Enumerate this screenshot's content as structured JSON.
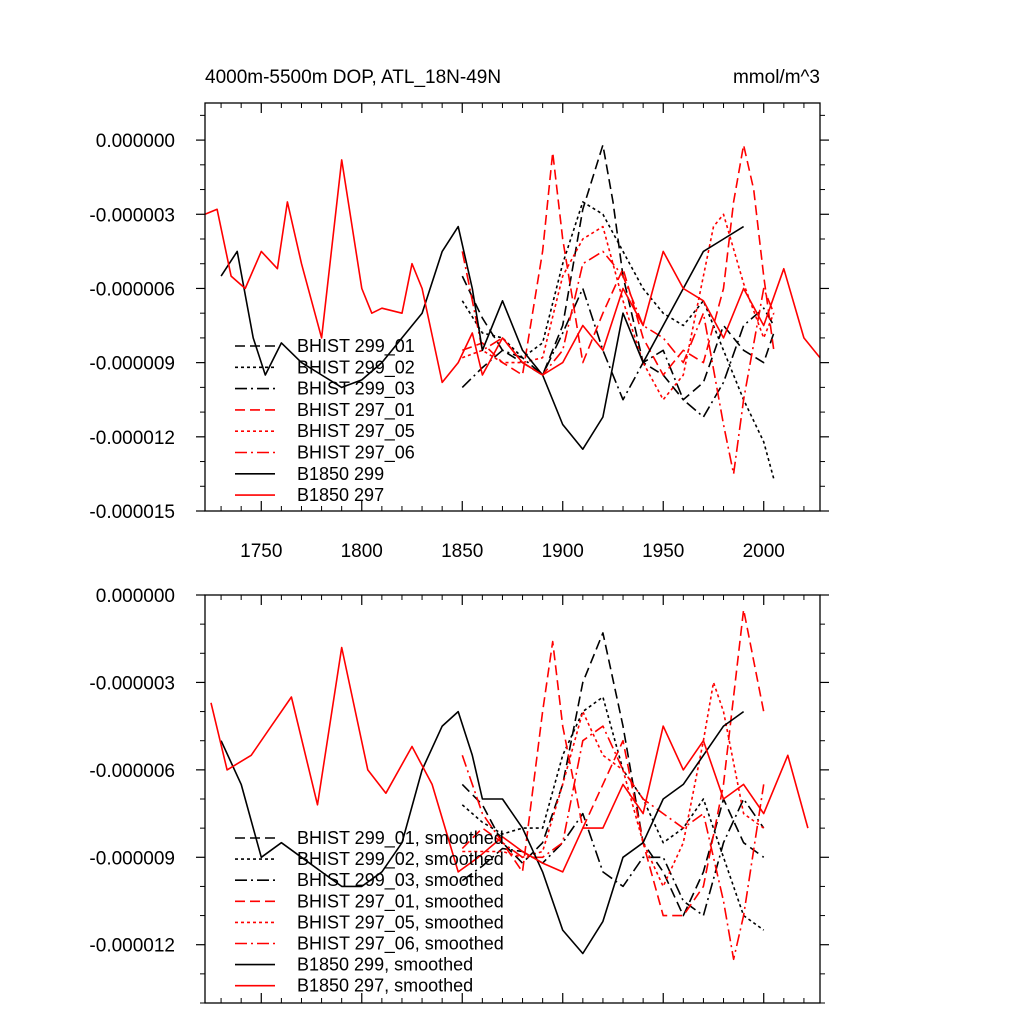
{
  "colors": {
    "black": "#000000",
    "red": "#ff0000"
  },
  "chart_data": [
    {
      "type": "line",
      "title": "4000m-5500m DOP, ATL_18N-49N",
      "units": "mmol/m^3",
      "xlim": [
        1722,
        2028
      ],
      "ylim": [
        -1.5e-05,
        1.5e-06
      ],
      "xticks": [
        1750,
        1800,
        1850,
        1900,
        1950,
        2000
      ],
      "xticklabels": [
        "1750",
        "1800",
        "1850",
        "1900",
        "1950",
        "2000"
      ],
      "yticks": [
        0.0,
        -3e-06,
        -6e-06,
        -9e-06,
        -1.2e-05,
        -1.5e-05
      ],
      "yticklabels": [
        "0.000000",
        "-0.000003",
        "-0.000006",
        "-0.000009",
        "-0.000012",
        "-0.000015"
      ],
      "legend": [
        "BHIST 299_01",
        "BHIST 299_02",
        "BHIST 299_03",
        "BHIST 297_01",
        "BHIST 297_05",
        "BHIST 297_06",
        "B1850 299",
        "B1850 297"
      ],
      "series": [
        {
          "name": "BHIST 299_01",
          "color": "#000000",
          "dash": "10 5",
          "x": [
            1850,
            1860,
            1870,
            1880,
            1890,
            1900,
            1910,
            1920,
            1925,
            1930,
            1940,
            1950,
            1960,
            1970,
            1980,
            1990,
            2000,
            2005
          ],
          "y": [
            -5.5e-06,
            -7.2e-06,
            -8.5e-06,
            -9e-06,
            -9.5e-06,
            -7.5e-06,
            -2.8e-06,
            -2e-07,
            -2.5e-06,
            -5.5e-06,
            -9e-06,
            -9.5e-06,
            -1.05e-05,
            -9.8e-06,
            -7.5e-06,
            -8.5e-06,
            -9e-06,
            -7.8e-06
          ]
        },
        {
          "name": "BHIST 299_02",
          "color": "#000000",
          "dash": "3 3",
          "x": [
            1850,
            1860,
            1870,
            1880,
            1890,
            1900,
            1910,
            1920,
            1930,
            1940,
            1950,
            1960,
            1970,
            1980,
            1990,
            2000,
            2005
          ],
          "y": [
            -6.5e-06,
            -7.8e-06,
            -8e-06,
            -8.8e-06,
            -8.2e-06,
            -5e-06,
            -2.5e-06,
            -3e-06,
            -4.5e-06,
            -6e-06,
            -7e-06,
            -7.5e-06,
            -6.5e-06,
            -8.5e-06,
            -1.05e-05,
            -1.22e-05,
            -1.37e-05
          ]
        },
        {
          "name": "BHIST 299_03",
          "color": "#000000",
          "dash": "12 4 2 4",
          "x": [
            1850,
            1860,
            1870,
            1880,
            1890,
            1900,
            1910,
            1920,
            1930,
            1940,
            1950,
            1960,
            1970,
            1980,
            1990,
            2000,
            2005
          ],
          "y": [
            -1e-05,
            -9.2e-06,
            -8.5e-06,
            -8.8e-06,
            -9.5e-06,
            -7.8e-06,
            -6e-06,
            -8.5e-06,
            -1.05e-05,
            -9e-06,
            -8.5e-06,
            -1.05e-05,
            -1.12e-05,
            -9.8e-06,
            -7.5e-06,
            -6.8e-06,
            -7.5e-06
          ]
        },
        {
          "name": "BHIST 297_01",
          "color": "#ff0000",
          "dash": "10 5",
          "x": [
            1850,
            1860,
            1870,
            1880,
            1890,
            1895,
            1900,
            1905,
            1910,
            1920,
            1930,
            1940,
            1950,
            1960,
            1970,
            1980,
            1985,
            1990,
            1995,
            2000,
            2005
          ],
          "y": [
            -8.5e-06,
            -8.2e-06,
            -9e-06,
            -9.5e-06,
            -4.5e-06,
            -5e-07,
            -4e-06,
            -6.5e-06,
            -9e-06,
            -7e-06,
            -5.2e-06,
            -8e-06,
            -9.5e-06,
            -8.5e-06,
            -9e-06,
            -6e-06,
            -2.5e-06,
            -2e-07,
            -2e-06,
            -5.5e-06,
            -8.5e-06
          ]
        },
        {
          "name": "BHIST 297_05",
          "color": "#ff0000",
          "dash": "3 3",
          "x": [
            1850,
            1860,
            1870,
            1880,
            1890,
            1900,
            1910,
            1920,
            1930,
            1940,
            1950,
            1960,
            1970,
            1975,
            1980,
            1990,
            2000,
            2005
          ],
          "y": [
            -8.8e-06,
            -8.5e-06,
            -9e-06,
            -9e-06,
            -8.8e-06,
            -5.5e-06,
            -4e-06,
            -3.5e-06,
            -6.5e-06,
            -9e-06,
            -1.05e-05,
            -9.5e-06,
            -5.5e-06,
            -3.5e-06,
            -3e-06,
            -5.8e-06,
            -8e-06,
            -7e-06
          ]
        },
        {
          "name": "BHIST 297_06",
          "color": "#ff0000",
          "dash": "12 4 2 4",
          "x": [
            1850,
            1860,
            1870,
            1880,
            1890,
            1900,
            1910,
            1920,
            1930,
            1940,
            1950,
            1960,
            1970,
            1980,
            1985,
            1990,
            2000,
            2005
          ],
          "y": [
            -4.5e-06,
            -8.5e-06,
            -8e-06,
            -9e-06,
            -9.5e-06,
            -8.5e-06,
            -5e-06,
            -4.5e-06,
            -5.5e-06,
            -7.5e-06,
            -8e-06,
            -9e-06,
            -7e-06,
            -1.15e-05,
            -1.35e-05,
            -1.05e-05,
            -6e-06,
            -7e-06
          ]
        },
        {
          "name": "B1850 299",
          "color": "#000000",
          "dash": "",
          "x": [
            1730,
            1738,
            1746,
            1752,
            1760,
            1770,
            1780,
            1790,
            1800,
            1810,
            1820,
            1830,
            1840,
            1848,
            1855,
            1860,
            1870,
            1880,
            1890,
            1900,
            1910,
            1920,
            1930,
            1940,
            1950,
            1960,
            1970,
            1980,
            1990
          ],
          "y": [
            -5.5e-06,
            -4.5e-06,
            -8e-06,
            -9.5e-06,
            -8.2e-06,
            -9e-06,
            -9.5e-06,
            -1e-05,
            -9.7e-06,
            -9e-06,
            -8e-06,
            -7e-06,
            -4.5e-06,
            -3.5e-06,
            -6e-06,
            -8.5e-06,
            -6.5e-06,
            -8.5e-06,
            -9.5e-06,
            -1.15e-05,
            -1.25e-05,
            -1.12e-05,
            -7e-06,
            -9e-06,
            -7.5e-06,
            -6e-06,
            -4.5e-06,
            -4e-06,
            -3.5e-06
          ]
        },
        {
          "name": "B1850 297",
          "color": "#ff0000",
          "dash": "",
          "x": [
            1722,
            1728,
            1735,
            1742,
            1750,
            1758,
            1763,
            1770,
            1780,
            1790,
            1800,
            1805,
            1810,
            1820,
            1825,
            1830,
            1840,
            1848,
            1855,
            1860,
            1870,
            1880,
            1890,
            1900,
            1910,
            1920,
            1930,
            1940,
            1950,
            1960,
            1970,
            1980,
            1990,
            2000,
            2010,
            2020,
            2028
          ],
          "y": [
            -3e-06,
            -2.8e-06,
            -5.5e-06,
            -6e-06,
            -4.5e-06,
            -5.2e-06,
            -2.5e-06,
            -5e-06,
            -8e-06,
            -8e-07,
            -6e-06,
            -7e-06,
            -6.8e-06,
            -7e-06,
            -5e-06,
            -6e-06,
            -9.8e-06,
            -9e-06,
            -7.8e-06,
            -9.5e-06,
            -8e-06,
            -9e-06,
            -9.5e-06,
            -9e-06,
            -7.5e-06,
            -8.5e-06,
            -6e-06,
            -7.5e-06,
            -4.5e-06,
            -6e-06,
            -6.5e-06,
            -8e-06,
            -6e-06,
            -7.5e-06,
            -5.2e-06,
            -8e-06,
            -8.8e-06
          ]
        }
      ]
    },
    {
      "type": "line",
      "title": "",
      "units": "",
      "xlim": [
        1722,
        2028
      ],
      "ylim": [
        -1.4e-05,
        0.0
      ],
      "xticks": [
        1750,
        1800,
        1850,
        1900,
        1950,
        2000
      ],
      "xticklabels": [],
      "yticks": [
        0.0,
        -3e-06,
        -6e-06,
        -9e-06,
        -1.2e-05
      ],
      "yticklabels": [
        "0.000000",
        "-0.000003",
        "-0.000006",
        "-0.000009",
        "-0.000012"
      ],
      "legend": [
        "BHIST 299_01, smoothed",
        "BHIST 299_02, smoothed",
        "BHIST 299_03, smoothed",
        "BHIST 297_01, smoothed",
        "BHIST 297_05, smoothed",
        "BHIST 297_06, smoothed",
        "B1850 299, smoothed",
        "B1850 297, smoothed"
      ],
      "series": [
        {
          "name": "BHIST 299_01, smoothed",
          "color": "#000000",
          "dash": "10 5",
          "x": [
            1850,
            1860,
            1870,
            1880,
            1890,
            1900,
            1910,
            1920,
            1930,
            1940,
            1950,
            1960,
            1970,
            1980,
            1990,
            2000
          ],
          "y": [
            -6.5e-06,
            -7.2e-06,
            -8.5e-06,
            -9.2e-06,
            -8.5e-06,
            -6.5e-06,
            -3e-06,
            -1.3e-06,
            -4.5e-06,
            -8.5e-06,
            -9.5e-06,
            -1.1e-05,
            -9.5e-06,
            -7e-06,
            -8.5e-06,
            -9e-06
          ]
        },
        {
          "name": "BHIST 299_02, smoothed",
          "color": "#000000",
          "dash": "3 3",
          "x": [
            1850,
            1860,
            1870,
            1880,
            1890,
            1900,
            1910,
            1920,
            1930,
            1940,
            1950,
            1960,
            1970,
            1980,
            1990,
            2000
          ],
          "y": [
            -7.2e-06,
            -7.8e-06,
            -8.2e-06,
            -8e-06,
            -8e-06,
            -5.5e-06,
            -4e-06,
            -3.5e-06,
            -6e-06,
            -7e-06,
            -8.5e-06,
            -8e-06,
            -7e-06,
            -9e-06,
            -1.1e-05,
            -1.15e-05
          ]
        },
        {
          "name": "BHIST 299_03, smoothed",
          "color": "#000000",
          "dash": "12 4 2 4",
          "x": [
            1850,
            1860,
            1870,
            1880,
            1890,
            1900,
            1910,
            1920,
            1930,
            1940,
            1950,
            1960,
            1970,
            1980,
            1990,
            2000
          ],
          "y": [
            -9.8e-06,
            -9.3e-06,
            -8.7e-06,
            -8.8e-06,
            -9.2e-06,
            -8.5e-06,
            -7.5e-06,
            -9.5e-06,
            -1e-05,
            -9e-06,
            -9e-06,
            -1.05e-05,
            -1.1e-05,
            -8.5e-06,
            -7e-06,
            -8e-06
          ]
        },
        {
          "name": "BHIST 297_01, smoothed",
          "color": "#ff0000",
          "dash": "10 5",
          "x": [
            1850,
            1860,
            1870,
            1880,
            1890,
            1895,
            1900,
            1910,
            1920,
            1930,
            1940,
            1950,
            1960,
            1970,
            1980,
            1990,
            2000
          ],
          "y": [
            -8.7e-06,
            -8e-06,
            -8.5e-06,
            -9.5e-06,
            -4e-06,
            -1.6e-06,
            -4.5e-06,
            -8e-06,
            -6.5e-06,
            -5e-06,
            -8.5e-06,
            -1.1e-05,
            -1.1e-05,
            -1e-05,
            -6.5e-06,
            -5e-07,
            -4e-06
          ]
        },
        {
          "name": "BHIST 297_05, smoothed",
          "color": "#ff0000",
          "dash": "3 3",
          "x": [
            1850,
            1860,
            1870,
            1880,
            1890,
            1900,
            1910,
            1920,
            1930,
            1940,
            1950,
            1960,
            1970,
            1975,
            1980,
            1990,
            2000
          ],
          "y": [
            -8.8e-06,
            -8.8e-06,
            -8.8e-06,
            -9e-06,
            -8.8e-06,
            -6.5e-06,
            -4e-06,
            -5.5e-06,
            -6e-06,
            -8.5e-06,
            -1e-05,
            -8.5e-06,
            -5e-06,
            -3e-06,
            -4e-06,
            -7.5e-06,
            -8e-06
          ]
        },
        {
          "name": "BHIST 297_06, smoothed",
          "color": "#ff0000",
          "dash": "12 4 2 4",
          "x": [
            1850,
            1860,
            1870,
            1880,
            1890,
            1900,
            1910,
            1920,
            1930,
            1940,
            1950,
            1960,
            1970,
            1980,
            1985,
            1990,
            2000
          ],
          "y": [
            -5.5e-06,
            -7.5e-06,
            -8.5e-06,
            -9e-06,
            -9e-06,
            -8.5e-06,
            -5e-06,
            -4.5e-06,
            -6e-06,
            -7e-06,
            -7.5e-06,
            -8e-06,
            -7.5e-06,
            -1.05e-05,
            -1.25e-05,
            -1.1e-05,
            -6.5e-06
          ]
        },
        {
          "name": "B1850 299, smoothed",
          "color": "#000000",
          "dash": "",
          "x": [
            1730,
            1740,
            1750,
            1760,
            1770,
            1780,
            1790,
            1800,
            1810,
            1820,
            1830,
            1840,
            1848,
            1855,
            1860,
            1870,
            1880,
            1890,
            1900,
            1910,
            1920,
            1930,
            1940,
            1950,
            1960,
            1970,
            1980,
            1990
          ],
          "y": [
            -5e-06,
            -6.5e-06,
            -9e-06,
            -8.5e-06,
            -9e-06,
            -9.5e-06,
            -1e-05,
            -1e-05,
            -9.5e-06,
            -8.5e-06,
            -6e-06,
            -4.5e-06,
            -4e-06,
            -5.5e-06,
            -7e-06,
            -7e-06,
            -8e-06,
            -9.5e-06,
            -1.15e-05,
            -1.23e-05,
            -1.12e-05,
            -9e-06,
            -8.5e-06,
            -7e-06,
            -6.5e-06,
            -5.5e-06,
            -4.5e-06,
            -4e-06
          ]
        },
        {
          "name": "B1850 297, smoothed",
          "color": "#ff0000",
          "dash": "",
          "x": [
            1725,
            1733,
            1745,
            1755,
            1765,
            1778,
            1790,
            1803,
            1812,
            1825,
            1835,
            1848,
            1858,
            1870,
            1880,
            1890,
            1900,
            1910,
            1920,
            1930,
            1940,
            1950,
            1960,
            1970,
            1980,
            1990,
            2000,
            2012,
            2022
          ],
          "y": [
            -3.7e-06,
            -6e-06,
            -5.5e-06,
            -4.5e-06,
            -3.5e-06,
            -7.2e-06,
            -1.8e-06,
            -6e-06,
            -6.8e-06,
            -5.2e-06,
            -6.5e-06,
            -9.5e-06,
            -9e-06,
            -8.3e-06,
            -8.8e-06,
            -9.2e-06,
            -9.5e-06,
            -8e-06,
            -8e-06,
            -6.5e-06,
            -7.5e-06,
            -4.5e-06,
            -6e-06,
            -5e-06,
            -7e-06,
            -6.5e-06,
            -7.5e-06,
            -5.5e-06,
            -8e-06
          ]
        }
      ]
    }
  ]
}
